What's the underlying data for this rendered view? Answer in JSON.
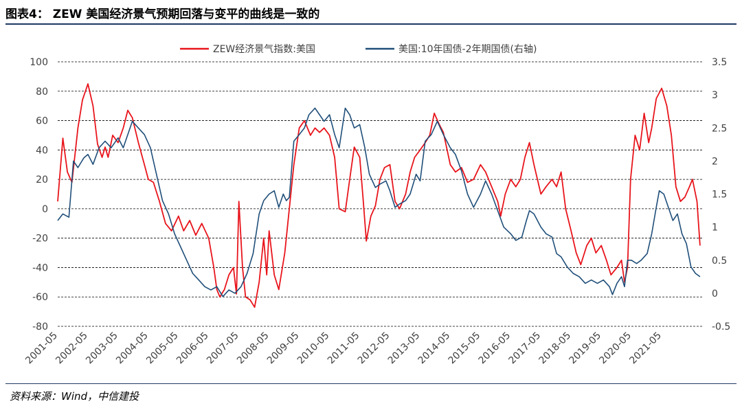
{
  "title": "图表4： ZEW 美国经济景气预期回落与变平的曲线是一致的",
  "source": "资料来源：Wind，中信建投",
  "chart_data": {
    "type": "line",
    "x_tick_labels": [
      "2001-05",
      "2002-05",
      "2003-05",
      "2004-05",
      "2005-05",
      "2006-05",
      "2007-05",
      "2008-05",
      "2009-05",
      "2010-05",
      "2011-05",
      "2012-05",
      "2013-05",
      "2014-05",
      "2015-05",
      "2016-05",
      "2017-05",
      "2018-05",
      "2019-05",
      "2020-05",
      "2021-05"
    ],
    "y_left": {
      "range": [
        -80,
        100
      ],
      "ticks": [
        "100",
        "80",
        "60",
        "40",
        "20",
        "0",
        "-20",
        "-40",
        "-60",
        "-80"
      ]
    },
    "y_right": {
      "range": [
        -0.5,
        3.5
      ],
      "ticks": [
        "3.5",
        "3",
        "2.5",
        "2",
        "1.5",
        "1",
        "0.5",
        "0",
        "-0.5"
      ]
    },
    "grid": true,
    "legend_position": "top-center",
    "series": [
      {
        "name": "ZEW经济景气指数:美国",
        "color": "#e8141b",
        "axis": "left",
        "points": [
          [
            2001.33,
            5
          ],
          [
            2001.5,
            48
          ],
          [
            2001.65,
            25
          ],
          [
            2001.8,
            18
          ],
          [
            2002.0,
            55
          ],
          [
            2002.15,
            74
          ],
          [
            2002.33,
            85
          ],
          [
            2002.5,
            70
          ],
          [
            2002.65,
            44
          ],
          [
            2002.8,
            35
          ],
          [
            2002.9,
            42
          ],
          [
            2003.0,
            35
          ],
          [
            2003.15,
            50
          ],
          [
            2003.33,
            45
          ],
          [
            2003.5,
            55
          ],
          [
            2003.65,
            67
          ],
          [
            2003.8,
            62
          ],
          [
            2004.0,
            45
          ],
          [
            2004.2,
            30
          ],
          [
            2004.33,
            20
          ],
          [
            2004.5,
            18
          ],
          [
            2004.7,
            5
          ],
          [
            2004.9,
            -10
          ],
          [
            2005.1,
            -15
          ],
          [
            2005.33,
            -5
          ],
          [
            2005.5,
            -15
          ],
          [
            2005.7,
            -8
          ],
          [
            2005.9,
            -18
          ],
          [
            2006.1,
            -10
          ],
          [
            2006.33,
            -20
          ],
          [
            2006.5,
            -40
          ],
          [
            2006.6,
            -55
          ],
          [
            2006.7,
            -60
          ],
          [
            2006.85,
            -55
          ],
          [
            2007.0,
            -45
          ],
          [
            2007.15,
            -40
          ],
          [
            2007.25,
            -58
          ],
          [
            2007.33,
            5
          ],
          [
            2007.45,
            -40
          ],
          [
            2007.55,
            -60
          ],
          [
            2007.7,
            -62
          ],
          [
            2007.85,
            -67
          ],
          [
            2008.0,
            -50
          ],
          [
            2008.15,
            -20
          ],
          [
            2008.25,
            -45
          ],
          [
            2008.33,
            -15
          ],
          [
            2008.5,
            -45
          ],
          [
            2008.65,
            -55
          ],
          [
            2008.85,
            -30
          ],
          [
            2009.0,
            0
          ],
          [
            2009.15,
            30
          ],
          [
            2009.33,
            55
          ],
          [
            2009.5,
            60
          ],
          [
            2009.7,
            50
          ],
          [
            2009.85,
            55
          ],
          [
            2010.0,
            52
          ],
          [
            2010.15,
            55
          ],
          [
            2010.33,
            50
          ],
          [
            2010.5,
            35
          ],
          [
            2010.65,
            0
          ],
          [
            2010.85,
            -2
          ],
          [
            2011.0,
            20
          ],
          [
            2011.15,
            42
          ],
          [
            2011.33,
            35
          ],
          [
            2011.45,
            5
          ],
          [
            2011.55,
            -22
          ],
          [
            2011.7,
            -5
          ],
          [
            2011.85,
            2
          ],
          [
            2012.0,
            20
          ],
          [
            2012.15,
            28
          ],
          [
            2012.33,
            30
          ],
          [
            2012.5,
            5
          ],
          [
            2012.65,
            0
          ],
          [
            2012.85,
            10
          ],
          [
            2013.0,
            25
          ],
          [
            2013.15,
            35
          ],
          [
            2013.33,
            40
          ],
          [
            2013.5,
            45
          ],
          [
            2013.65,
            50
          ],
          [
            2013.8,
            65
          ],
          [
            2013.95,
            58
          ],
          [
            2014.1,
            52
          ],
          [
            2014.33,
            30
          ],
          [
            2014.5,
            25
          ],
          [
            2014.7,
            28
          ],
          [
            2014.9,
            18
          ],
          [
            2015.1,
            20
          ],
          [
            2015.33,
            30
          ],
          [
            2015.5,
            25
          ],
          [
            2015.7,
            15
          ],
          [
            2015.9,
            5
          ],
          [
            2016.0,
            -5
          ],
          [
            2016.15,
            10
          ],
          [
            2016.33,
            20
          ],
          [
            2016.5,
            15
          ],
          [
            2016.65,
            20
          ],
          [
            2016.8,
            35
          ],
          [
            2016.95,
            45
          ],
          [
            2017.1,
            30
          ],
          [
            2017.33,
            10
          ],
          [
            2017.5,
            15
          ],
          [
            2017.7,
            20
          ],
          [
            2017.85,
            15
          ],
          [
            2018.0,
            25
          ],
          [
            2018.15,
            0
          ],
          [
            2018.33,
            -15
          ],
          [
            2018.5,
            -30
          ],
          [
            2018.65,
            -38
          ],
          [
            2018.85,
            -25
          ],
          [
            2019.0,
            -20
          ],
          [
            2019.15,
            -30
          ],
          [
            2019.33,
            -25
          ],
          [
            2019.5,
            -35
          ],
          [
            2019.65,
            -45
          ],
          [
            2019.85,
            -40
          ],
          [
            2020.0,
            -35
          ],
          [
            2020.1,
            -50
          ],
          [
            2020.2,
            -40
          ],
          [
            2020.3,
            20
          ],
          [
            2020.45,
            50
          ],
          [
            2020.6,
            40
          ],
          [
            2020.75,
            65
          ],
          [
            2020.9,
            45
          ],
          [
            2021.0,
            55
          ],
          [
            2021.15,
            75
          ],
          [
            2021.33,
            82
          ],
          [
            2021.5,
            70
          ],
          [
            2021.65,
            50
          ],
          [
            2021.8,
            15
          ],
          [
            2021.95,
            5
          ],
          [
            2022.1,
            8
          ],
          [
            2022.25,
            15
          ],
          [
            2022.35,
            20
          ],
          [
            2022.5,
            5
          ],
          [
            2022.6,
            -25
          ]
        ]
      },
      {
        "name": "美国:10年国债-2年期国债(右轴)",
        "color": "#1f4e79",
        "axis": "right",
        "points": [
          [
            2001.33,
            1.1
          ],
          [
            2001.5,
            1.2
          ],
          [
            2001.7,
            1.15
          ],
          [
            2001.85,
            2.0
          ],
          [
            2002.0,
            1.9
          ],
          [
            2002.2,
            2.05
          ],
          [
            2002.33,
            2.1
          ],
          [
            2002.5,
            1.95
          ],
          [
            2002.7,
            2.2
          ],
          [
            2002.9,
            2.3
          ],
          [
            2003.1,
            2.2
          ],
          [
            2003.33,
            2.35
          ],
          [
            2003.5,
            2.2
          ],
          [
            2003.65,
            2.4
          ],
          [
            2003.8,
            2.6
          ],
          [
            2004.0,
            2.5
          ],
          [
            2004.2,
            2.4
          ],
          [
            2004.4,
            2.2
          ],
          [
            2004.6,
            1.8
          ],
          [
            2004.8,
            1.4
          ],
          [
            2005.0,
            1.2
          ],
          [
            2005.2,
            0.9
          ],
          [
            2005.4,
            0.7
          ],
          [
            2005.6,
            0.5
          ],
          [
            2005.8,
            0.3
          ],
          [
            2006.0,
            0.2
          ],
          [
            2006.2,
            0.1
          ],
          [
            2006.4,
            0.05
          ],
          [
            2006.6,
            0.1
          ],
          [
            2006.8,
            -0.05
          ],
          [
            2007.0,
            0.05
          ],
          [
            2007.2,
            0.0
          ],
          [
            2007.4,
            0.1
          ],
          [
            2007.6,
            0.3
          ],
          [
            2007.8,
            0.6
          ],
          [
            2008.0,
            1.2
          ],
          [
            2008.15,
            1.4
          ],
          [
            2008.33,
            1.5
          ],
          [
            2008.5,
            1.55
          ],
          [
            2008.65,
            1.3
          ],
          [
            2008.8,
            1.5
          ],
          [
            2008.9,
            1.4
          ],
          [
            2009.0,
            1.45
          ],
          [
            2009.15,
            2.3
          ],
          [
            2009.33,
            2.4
          ],
          [
            2009.5,
            2.5
          ],
          [
            2009.65,
            2.7
          ],
          [
            2009.85,
            2.8
          ],
          [
            2010.0,
            2.7
          ],
          [
            2010.15,
            2.6
          ],
          [
            2010.33,
            2.7
          ],
          [
            2010.5,
            2.4
          ],
          [
            2010.65,
            2.2
          ],
          [
            2010.85,
            2.8
          ],
          [
            2011.0,
            2.7
          ],
          [
            2011.15,
            2.5
          ],
          [
            2011.33,
            2.55
          ],
          [
            2011.5,
            2.2
          ],
          [
            2011.65,
            1.8
          ],
          [
            2011.85,
            1.6
          ],
          [
            2012.0,
            1.65
          ],
          [
            2012.2,
            1.7
          ],
          [
            2012.33,
            1.55
          ],
          [
            2012.5,
            1.3
          ],
          [
            2012.65,
            1.35
          ],
          [
            2012.85,
            1.4
          ],
          [
            2013.0,
            1.5
          ],
          [
            2013.2,
            1.8
          ],
          [
            2013.33,
            1.7
          ],
          [
            2013.5,
            2.3
          ],
          [
            2013.7,
            2.4
          ],
          [
            2013.9,
            2.6
          ],
          [
            2014.1,
            2.4
          ],
          [
            2014.33,
            2.2
          ],
          [
            2014.5,
            2.1
          ],
          [
            2014.7,
            1.85
          ],
          [
            2014.9,
            1.5
          ],
          [
            2015.1,
            1.3
          ],
          [
            2015.33,
            1.5
          ],
          [
            2015.5,
            1.7
          ],
          [
            2015.7,
            1.5
          ],
          [
            2015.9,
            1.25
          ],
          [
            2016.1,
            1.0
          ],
          [
            2016.33,
            0.9
          ],
          [
            2016.5,
            0.8
          ],
          [
            2016.7,
            0.85
          ],
          [
            2016.85,
            1.1
          ],
          [
            2016.95,
            1.25
          ],
          [
            2017.1,
            1.2
          ],
          [
            2017.33,
            1.0
          ],
          [
            2017.5,
            0.9
          ],
          [
            2017.7,
            0.85
          ],
          [
            2017.85,
            0.6
          ],
          [
            2018.0,
            0.55
          ],
          [
            2018.2,
            0.4
          ],
          [
            2018.4,
            0.3
          ],
          [
            2018.6,
            0.25
          ],
          [
            2018.8,
            0.15
          ],
          [
            2019.0,
            0.2
          ],
          [
            2019.2,
            0.15
          ],
          [
            2019.4,
            0.2
          ],
          [
            2019.6,
            0.1
          ],
          [
            2019.7,
            -0.02
          ],
          [
            2019.85,
            0.15
          ],
          [
            2020.0,
            0.25
          ],
          [
            2020.1,
            0.1
          ],
          [
            2020.2,
            0.5
          ],
          [
            2020.33,
            0.5
          ],
          [
            2020.5,
            0.45
          ],
          [
            2020.65,
            0.5
          ],
          [
            2020.85,
            0.6
          ],
          [
            2021.0,
            0.9
          ],
          [
            2021.15,
            1.3
          ],
          [
            2021.25,
            1.55
          ],
          [
            2021.4,
            1.5
          ],
          [
            2021.55,
            1.3
          ],
          [
            2021.7,
            1.1
          ],
          [
            2021.85,
            1.2
          ],
          [
            2022.0,
            0.9
          ],
          [
            2022.15,
            0.75
          ],
          [
            2022.3,
            0.4
          ],
          [
            2022.45,
            0.3
          ],
          [
            2022.6,
            0.25
          ]
        ]
      }
    ]
  }
}
